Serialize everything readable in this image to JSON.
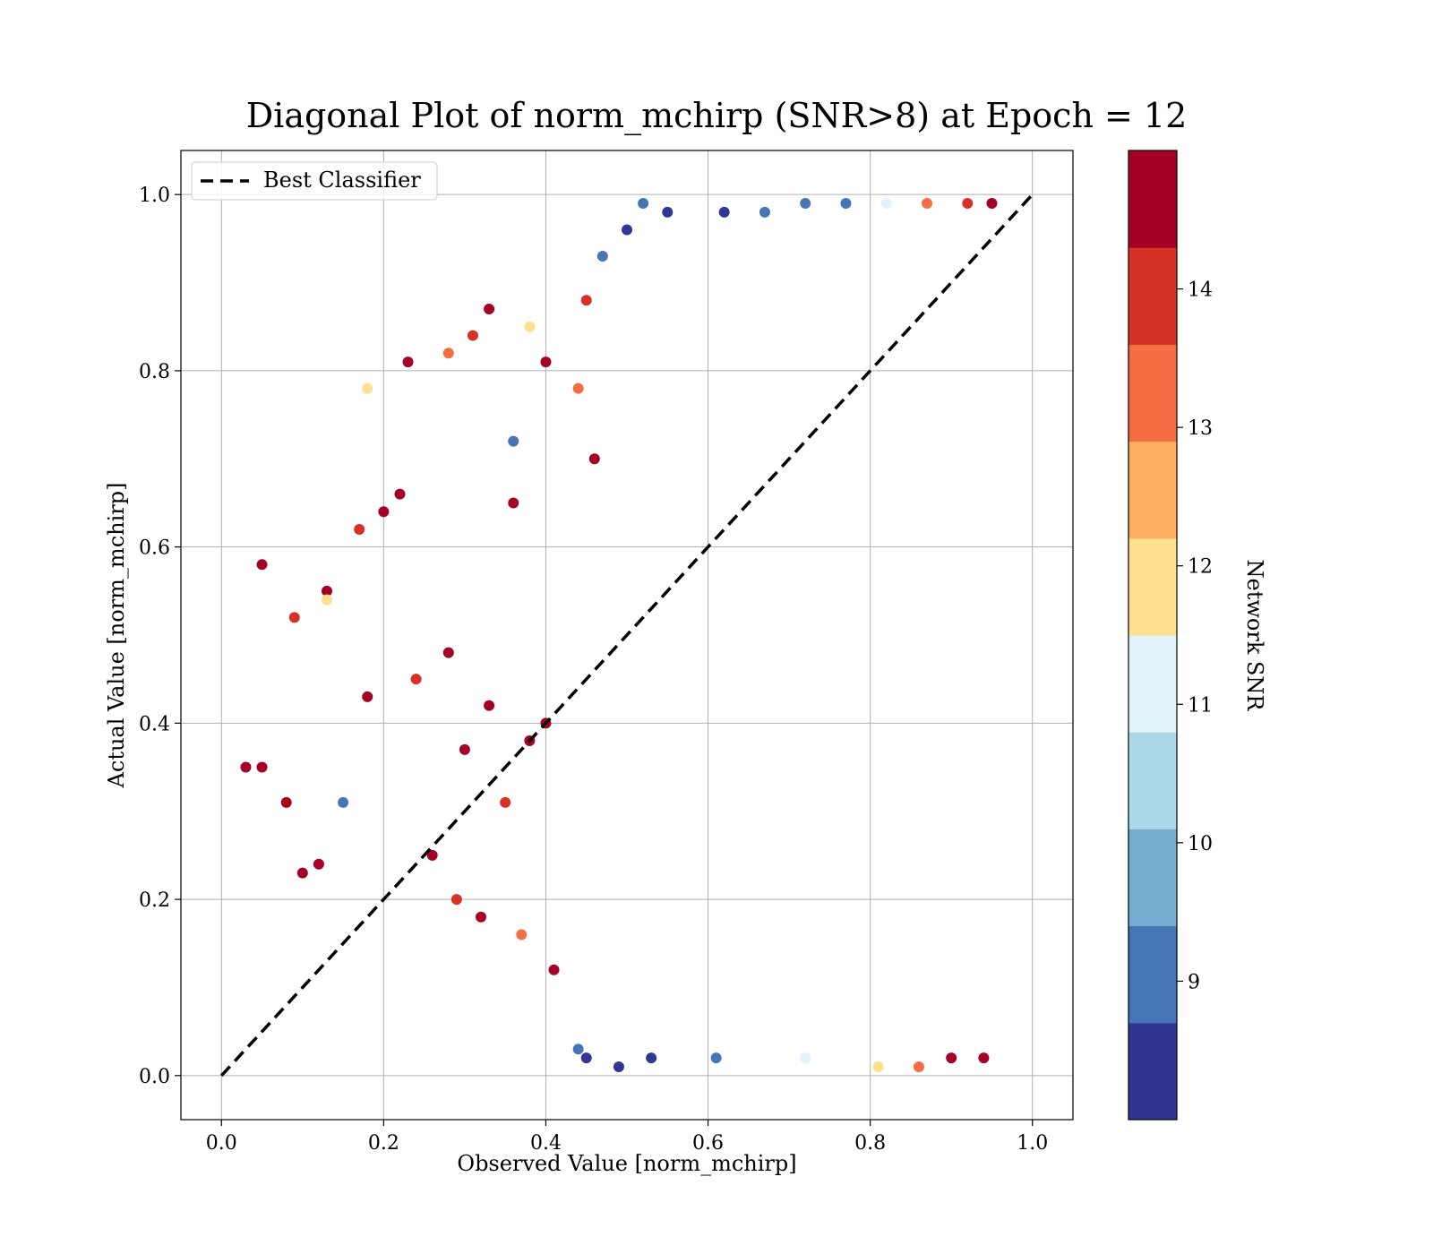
{
  "chart_data": {
    "type": "scatter",
    "title": "Diagonal Plot of norm_mchirp (SNR>8) at Epoch = 12",
    "xlabel": "Observed Value [norm_mchirp]",
    "ylabel": "Actual Value [norm_mchirp]",
    "xlim": [
      -0.05,
      1.05
    ],
    "ylim": [
      -0.05,
      1.05
    ],
    "x_ticks": [
      "0.0",
      "0.2",
      "0.4",
      "0.6",
      "0.8",
      "1.0"
    ],
    "y_ticks": [
      "0.0",
      "0.2",
      "0.4",
      "0.6",
      "0.8",
      "1.0"
    ],
    "grid": true,
    "legend": {
      "position": "top-left",
      "entries": [
        "Best Classifier"
      ]
    },
    "reference_line": {
      "name": "Best Classifier",
      "x": [
        0.0,
        1.0
      ],
      "y": [
        0.0,
        1.0
      ],
      "style": "dashed",
      "color": "#000000"
    },
    "colorbar": {
      "label": "Network SNR",
      "range": [
        8.0,
        15.0
      ],
      "ticks": [
        "9",
        "10",
        "11",
        "12",
        "13",
        "14"
      ],
      "colors": [
        "#313695",
        "#4575b4",
        "#74add1",
        "#abd9e9",
        "#e0f3f8",
        "#fee090",
        "#fdae61",
        "#f46d43",
        "#d73027",
        "#a50026"
      ]
    },
    "points": [
      [
        0.05,
        0.58,
        15
      ],
      [
        0.03,
        0.35,
        15
      ],
      [
        0.05,
        0.35,
        15
      ],
      [
        0.09,
        0.52,
        14
      ],
      [
        0.13,
        0.55,
        15
      ],
      [
        0.13,
        0.54,
        12
      ],
      [
        0.08,
        0.31,
        15
      ],
      [
        0.1,
        0.23,
        15
      ],
      [
        0.12,
        0.24,
        15
      ],
      [
        0.15,
        0.31,
        9
      ],
      [
        0.17,
        0.62,
        14
      ],
      [
        0.18,
        0.78,
        12
      ],
      [
        0.23,
        0.81,
        15
      ],
      [
        0.28,
        0.82,
        13
      ],
      [
        0.31,
        0.84,
        14
      ],
      [
        0.33,
        0.87,
        15
      ],
      [
        0.38,
        0.85,
        12
      ],
      [
        0.36,
        0.72,
        9
      ],
      [
        0.36,
        0.65,
        15
      ],
      [
        0.4,
        0.81,
        15
      ],
      [
        0.2,
        0.64,
        15
      ],
      [
        0.22,
        0.66,
        15
      ],
      [
        0.18,
        0.43,
        15
      ],
      [
        0.24,
        0.45,
        14
      ],
      [
        0.28,
        0.48,
        15
      ],
      [
        0.3,
        0.37,
        15
      ],
      [
        0.33,
        0.42,
        15
      ],
      [
        0.35,
        0.31,
        14
      ],
      [
        0.38,
        0.38,
        15
      ],
      [
        0.4,
        0.4,
        15
      ],
      [
        0.26,
        0.25,
        15
      ],
      [
        0.29,
        0.2,
        14
      ],
      [
        0.32,
        0.18,
        15
      ],
      [
        0.37,
        0.16,
        13
      ],
      [
        0.41,
        0.12,
        15
      ],
      [
        0.44,
        0.03,
        9
      ],
      [
        0.45,
        0.02,
        8.5
      ],
      [
        0.49,
        0.01,
        8.5
      ],
      [
        0.53,
        0.02,
        8.5
      ],
      [
        0.61,
        0.02,
        9
      ],
      [
        0.72,
        0.02,
        11
      ],
      [
        0.81,
        0.01,
        12
      ],
      [
        0.86,
        0.01,
        13
      ],
      [
        0.9,
        0.02,
        15
      ],
      [
        0.94,
        0.02,
        15
      ],
      [
        0.95,
        0.99,
        15
      ],
      [
        0.92,
        0.99,
        14
      ],
      [
        0.87,
        0.99,
        13
      ],
      [
        0.82,
        0.99,
        11
      ],
      [
        0.77,
        0.99,
        9
      ],
      [
        0.72,
        0.99,
        9
      ],
      [
        0.67,
        0.98,
        9
      ],
      [
        0.62,
        0.98,
        8.5
      ],
      [
        0.55,
        0.98,
        8.5
      ],
      [
        0.52,
        0.99,
        9
      ],
      [
        0.5,
        0.96,
        8.5
      ],
      [
        0.47,
        0.93,
        9
      ],
      [
        0.45,
        0.88,
        14
      ],
      [
        0.44,
        0.78,
        13
      ],
      [
        0.46,
        0.7,
        15
      ]
    ]
  }
}
